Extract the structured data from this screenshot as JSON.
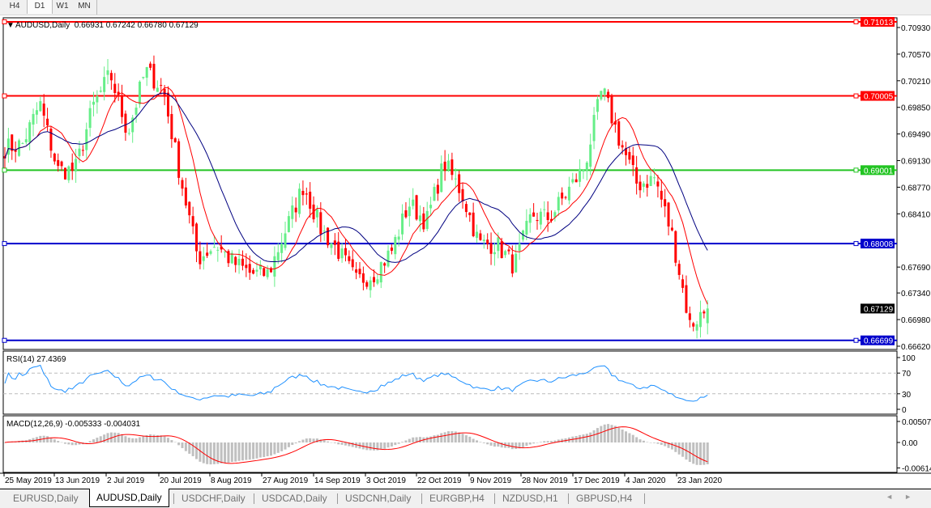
{
  "toolbar": {
    "timeframes": [
      {
        "label": "H4",
        "active": false
      },
      {
        "label": "D1",
        "active": true
      },
      {
        "label": "W1",
        "active": false
      },
      {
        "label": "MN",
        "active": false
      }
    ]
  },
  "chart": {
    "header": "AUDUSD,Daily  0.66931 0.67242 0.66780 0.67129",
    "symbol": "AUDUSD",
    "timeframe": "Daily",
    "ohlc": {
      "open": "0.66931",
      "high": "0.67242",
      "low": "0.66780",
      "close": "0.67129"
    },
    "price_ticks": [
      "0.70930",
      "0.70570",
      "0.70210",
      "0.69850",
      "0.69490",
      "0.69130",
      "0.68770",
      "0.68410",
      "0.67690",
      "0.67340",
      "0.66980",
      "0.66620"
    ],
    "current_price": "0.67129",
    "hlines": [
      {
        "price": "0.71013",
        "color": "#ff0000"
      },
      {
        "price": "0.70005",
        "color": "#ff0000"
      },
      {
        "price": "0.69001",
        "color": "#22c422"
      },
      {
        "price": "0.68008",
        "color": "#0000cc"
      },
      {
        "price": "0.66699",
        "color": "#0000cc"
      }
    ],
    "bull_color": "#66ee88",
    "bear_color": "#ff0000",
    "ma_fast_color": "#ff0000",
    "ma_slow_color": "#000080",
    "close_path": [
      0.693,
      0.6935,
      0.699,
      0.69,
      0.69,
      0.6985,
      0.703,
      0.695,
      0.7035,
      0.701,
      0.689,
      0.678,
      0.68,
      0.6775,
      0.676,
      0.676,
      0.682,
      0.688,
      0.682,
      0.679,
      0.675,
      0.676,
      0.679,
      0.6855,
      0.683,
      0.691,
      0.687,
      0.68,
      0.68,
      0.677,
      0.684,
      0.6835,
      0.687,
      0.6905,
      0.701,
      0.694,
      0.688,
      0.689,
      0.681,
      0.669,
      0.6713
    ],
    "dates": [
      "25 May 2019",
      "13 Jun 2019",
      "2 Jul 2019",
      "20 Jul 2019",
      "8 Aug 2019",
      "27 Aug 2019",
      "14 Sep 2019",
      "3 Oct 2019",
      "22 Oct 2019",
      "9 Nov 2019",
      "28 Nov 2019",
      "17 Dec 2019",
      "4 Jan 2020",
      "23 Jan 2020"
    ]
  },
  "rsi": {
    "label": "RSI(14) 27.4369",
    "ticks": [
      "100",
      "70",
      "30",
      "0"
    ],
    "color": "#1e90ff"
  },
  "macd": {
    "label": "MACD(12,26,9) -0.005333 -0.004031",
    "ticks": [
      "0.005076",
      "0.00",
      "-0.006148"
    ],
    "hist_color": "#c0c0c0",
    "signal_color": "#ff0000"
  },
  "tabs": [
    {
      "label": "EURUSD,Daily",
      "active": false
    },
    {
      "label": "AUDUSD,Daily",
      "active": true
    },
    {
      "label": "USDCHF,Daily",
      "active": false
    },
    {
      "label": "USDCAD,Daily",
      "active": false
    },
    {
      "label": "USDCNH,Daily",
      "active": false
    },
    {
      "label": "EURGBP,H4",
      "active": false
    },
    {
      "label": "NZDUSD,H1",
      "active": false
    },
    {
      "label": "GBPUSD,H4",
      "active": false
    }
  ]
}
